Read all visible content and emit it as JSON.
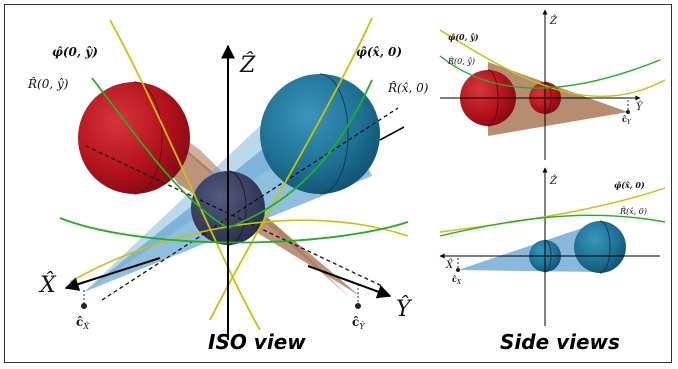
{
  "iso": {
    "caption": "ISO view",
    "axis_z": "Ẑ",
    "axis_x": "X̂",
    "axis_y": "Ŷ",
    "phi_0y": "φ̂(0, ŷ)",
    "phi_x0": "φ̂(x̂, 0)",
    "r_0y": "R̂(0, ŷ)",
    "r_x0": "R̂(x̂, 0)",
    "c_x": "ĉ",
    "c_x_sub": "X̂",
    "c_y": "ĉ",
    "c_y_sub": "Ŷ"
  },
  "side_top": {
    "axis_z": "Ẑ",
    "axis_y": "Ŷ",
    "phi": "φ̂(0, ŷ)",
    "r": "R̂(0, ŷ)",
    "c": "ĉ",
    "c_sub": "Y"
  },
  "side_bottom": {
    "axis_z": "Ẑ",
    "axis_x": "X̂",
    "phi": "φ̂(x̂, 0)",
    "r": "R̂(x̂, 0)",
    "c": "ĉ",
    "c_sub": "X"
  },
  "side_caption": "Side views",
  "colors": {
    "red_sphere": "#b3121c",
    "blue_sphere": "#1d6f93",
    "center_sphere": "#3a3e5e",
    "red_cone": "#a5704f",
    "blue_cone": "#6aa8d4",
    "yellow_curve": "#c8c400",
    "green_curve": "#22b022"
  }
}
